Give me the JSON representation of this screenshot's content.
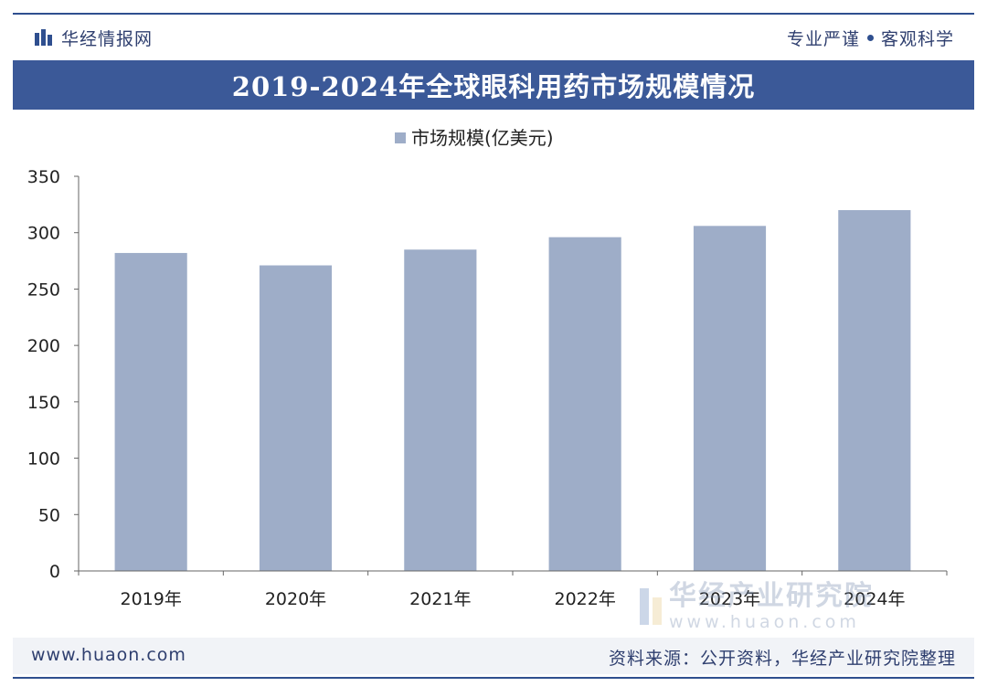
{
  "header": {
    "brand": "华经情报网",
    "slogan_left": "专业严谨",
    "slogan_right": "客观科学"
  },
  "title": "2019-2024年全球眼科用药市场规模情况",
  "chart_data": {
    "type": "bar",
    "title": "2019-2024年全球眼科用药市场规模情况",
    "categories": [
      "2019年",
      "2020年",
      "2021年",
      "2022年",
      "2023年",
      "2024年"
    ],
    "series": [
      {
        "name": "市场规模(亿美元)",
        "values": [
          282,
          271,
          285,
          296,
          306,
          320
        ]
      }
    ],
    "ylim": [
      0,
      350
    ],
    "yticks": [
      0,
      50,
      100,
      150,
      200,
      250,
      300,
      350
    ],
    "xlabel": "",
    "ylabel": "",
    "legend": "top-center",
    "grid": false,
    "bar_color": "#9eadc8"
  },
  "watermark": {
    "name": "华经产业研究院",
    "url": "www.huaon.com"
  },
  "footer": {
    "url": "www.huaon.com",
    "source": "资料来源：公开资料，华经产业研究院整理"
  }
}
